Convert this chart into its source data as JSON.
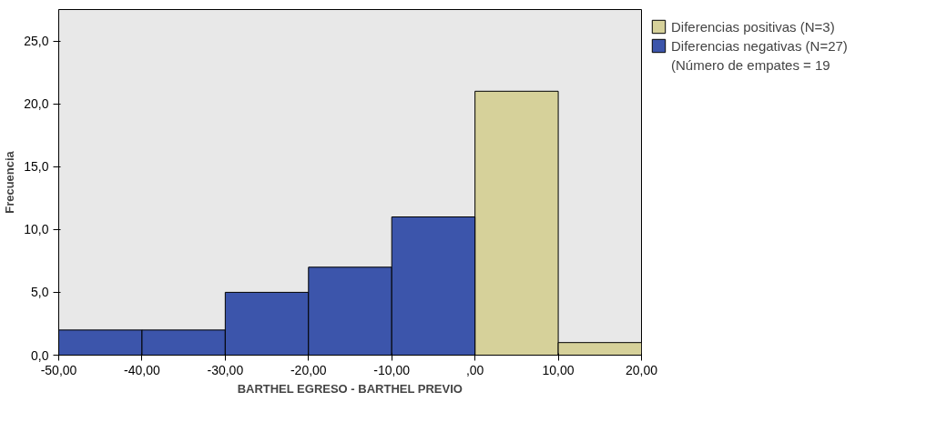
{
  "chart_data": {
    "type": "histogram",
    "xlabel": "BARTHEL EGRESO - BARTHEL PREVIO",
    "ylabel": "Frecuencia",
    "bins": [
      -50,
      -40,
      -30,
      -20,
      -10,
      0,
      10,
      20
    ],
    "series": [
      {
        "name": "Diferencias positivas (N=3)",
        "color": "#d6d19a",
        "values": [
          null,
          null,
          null,
          null,
          null,
          21,
          1
        ]
      },
      {
        "name": "Diferencias negativas (N=27)",
        "color": "#3c55ab",
        "values": [
          2,
          2,
          5,
          7,
          11,
          null,
          null
        ]
      }
    ],
    "annotations": [
      "(Número de empates = 19"
    ],
    "xlim": [
      -50,
      20
    ],
    "ylim": [
      0,
      27.5
    ],
    "xticks": [
      {
        "value": -50,
        "label": "-50,00"
      },
      {
        "value": -40,
        "label": "-40,00"
      },
      {
        "value": -30,
        "label": "-30,00"
      },
      {
        "value": -20,
        "label": "-20,00"
      },
      {
        "value": -10,
        "label": "-10,00"
      },
      {
        "value": 0,
        "label": ",00"
      },
      {
        "value": 10,
        "label": "10,00"
      },
      {
        "value": 20,
        "label": "20,00"
      }
    ],
    "yticks": [
      {
        "value": 0,
        "label": "0,0"
      },
      {
        "value": 5,
        "label": "5,0"
      },
      {
        "value": 10,
        "label": "10,0"
      },
      {
        "value": 15,
        "label": "15,0"
      },
      {
        "value": 20,
        "label": "20,0"
      },
      {
        "value": 25,
        "label": "25,0"
      }
    ],
    "grid": false,
    "legend": "right"
  }
}
